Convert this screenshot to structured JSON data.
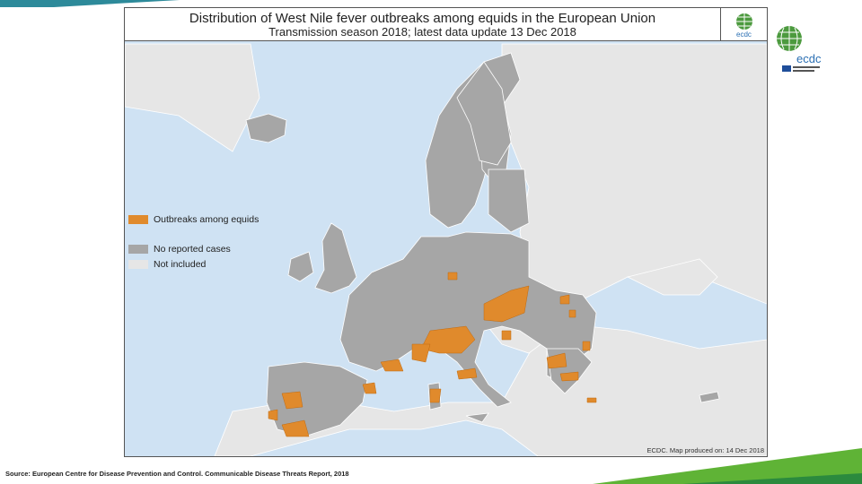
{
  "map": {
    "title": "Distribution of West Nile fever outbreaks among equids in the European Union",
    "subtitle": "Transmission season 2018; latest data update 13 Dec 2018",
    "credit": "ECDC. Map produced on: 14 Dec 2018",
    "legend": [
      {
        "label": "Outbreaks among equids",
        "color": "#e08a2c"
      },
      {
        "label": "No reported cases",
        "color": "#a6a6a6"
      },
      {
        "label": "Not included",
        "color": "#e6e6e6"
      }
    ],
    "colors": {
      "sea": "#cfe2f3",
      "land_included": "#a6a6a6",
      "land_not_included": "#e6e6e6",
      "outbreak": "#e08a2c"
    }
  },
  "logo": {
    "text": "ecdc"
  },
  "source": "Source: European Centre for Disease Prevention and Control. Communicable Disease Threats Report, 2018",
  "decor": {
    "accent_green": "#5fb336",
    "accent_blue": "#2b78c2"
  }
}
